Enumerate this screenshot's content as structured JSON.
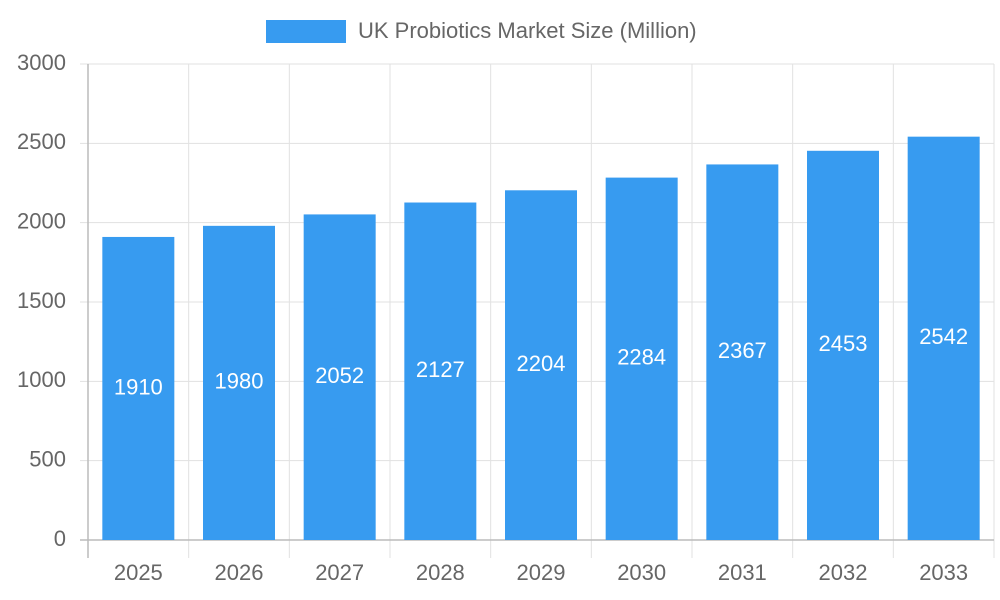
{
  "chart_data": {
    "type": "bar",
    "categories": [
      "2025",
      "2026",
      "2027",
      "2028",
      "2029",
      "2030",
      "2031",
      "2032",
      "2033"
    ],
    "series": [
      {
        "name": "UK Probiotics Market Size (Million)",
        "color": "#379bf0",
        "values": [
          1910,
          1980,
          2052,
          2127,
          2204,
          2284,
          2367,
          2453,
          2542
        ]
      }
    ],
    "ylim": [
      0,
      3000
    ],
    "yticks": [
      0,
      500,
      1000,
      1500,
      2000,
      2500,
      3000
    ],
    "grid": true,
    "legend": "top"
  }
}
